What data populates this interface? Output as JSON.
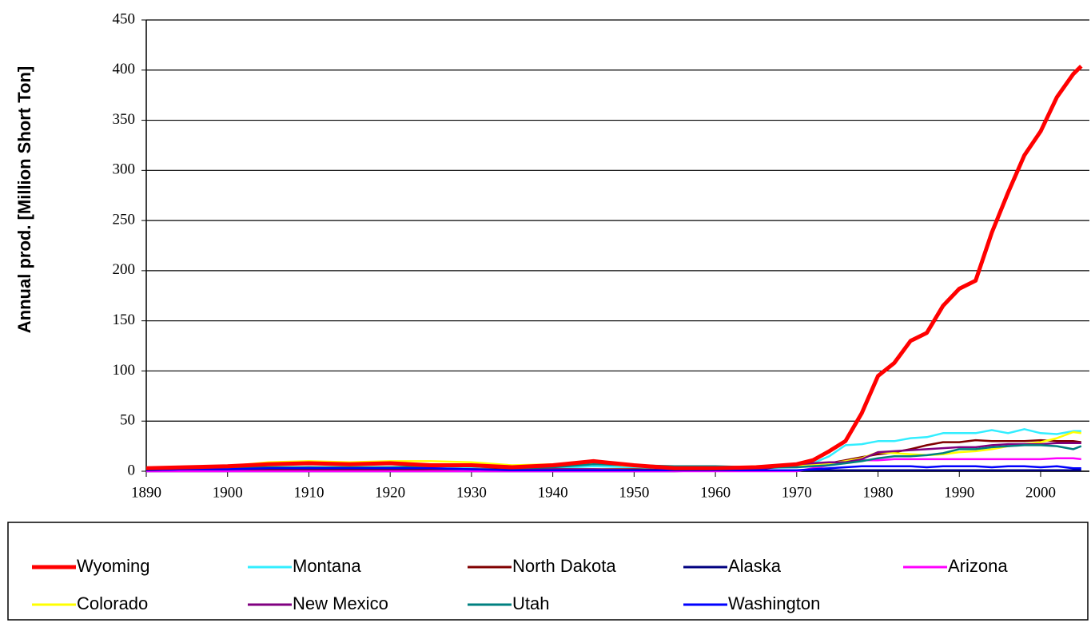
{
  "chart_data": {
    "type": "line",
    "ylabel": "Annual prod. [Million  Short Ton]",
    "x": [
      1890,
      1895,
      1900,
      1905,
      1910,
      1915,
      1920,
      1925,
      1930,
      1935,
      1940,
      1945,
      1950,
      1955,
      1960,
      1965,
      1970,
      1972,
      1974,
      1976,
      1978,
      1980,
      1982,
      1984,
      1986,
      1988,
      1990,
      1992,
      1994,
      1996,
      1998,
      2000,
      2002,
      2004,
      2005
    ],
    "series": [
      {
        "name": "Wyoming",
        "color": "#ff0000",
        "values": [
          3,
          4,
          5,
          7,
          8,
          7,
          8,
          6,
          6,
          4,
          6,
          10,
          6,
          3,
          3,
          4,
          7,
          11,
          20,
          30,
          58,
          95,
          108,
          130,
          138,
          165,
          182,
          190,
          238,
          278,
          315,
          339,
          373,
          396,
          404
        ]
      },
      {
        "name": "Montana",
        "color": "#33eeff",
        "values": [
          2,
          2,
          2,
          3,
          3,
          3,
          3,
          3,
          3,
          2,
          3,
          5,
          4,
          2,
          2,
          3,
          4,
          8,
          15,
          26,
          27,
          30,
          30,
          33,
          34,
          38,
          38,
          38,
          41,
          38,
          42,
          38,
          37,
          40,
          40
        ]
      },
      {
        "name": "North Dakota",
        "color": "#800000",
        "values": [
          1,
          1,
          1,
          1,
          1,
          1,
          1,
          2,
          2,
          2,
          2,
          2,
          2,
          1,
          2,
          2,
          6,
          7,
          8,
          11,
          14,
          17,
          19,
          22,
          26,
          29,
          29,
          31,
          30,
          30,
          30,
          31,
          30,
          30,
          29
        ]
      },
      {
        "name": "Alaska",
        "color": "#000080",
        "values": [
          0,
          0,
          0,
          0,
          0,
          0,
          0,
          0,
          0,
          0,
          0,
          0,
          0,
          0,
          1,
          1,
          1,
          1,
          1,
          1,
          1,
          1,
          1,
          1,
          1,
          1,
          1,
          1,
          1,
          1,
          1,
          1,
          1,
          1,
          1
        ]
      },
      {
        "name": "Arizona",
        "color": "#ff00ff",
        "values": [
          0,
          0,
          0,
          0,
          0,
          0,
          0,
          0,
          0,
          0,
          0,
          0,
          0,
          0,
          0,
          0,
          0,
          3,
          6,
          10,
          11,
          11,
          12,
          12,
          12,
          12,
          12,
          12,
          12,
          12,
          12,
          12,
          13,
          13,
          12
        ]
      },
      {
        "name": "Colorado",
        "color": "#ffff00",
        "values": [
          3,
          4,
          5,
          9,
          10,
          9,
          10,
          10,
          9,
          6,
          7,
          8,
          5,
          3,
          3,
          5,
          6,
          7,
          8,
          10,
          13,
          19,
          18,
          17,
          16,
          17,
          19,
          20,
          22,
          25,
          27,
          29,
          33,
          39,
          38
        ]
      },
      {
        "name": "New Mexico",
        "color": "#800080",
        "values": [
          1,
          2,
          2,
          3,
          4,
          3,
          3,
          3,
          2,
          1,
          2,
          2,
          1,
          1,
          1,
          2,
          7,
          8,
          9,
          9,
          12,
          19,
          20,
          21,
          22,
          23,
          24,
          24,
          26,
          27,
          27,
          27,
          28,
          28,
          28
        ]
      },
      {
        "name": "Utah",
        "color": "#008080",
        "values": [
          2,
          3,
          4,
          4,
          4,
          4,
          4,
          5,
          5,
          3,
          4,
          7,
          6,
          5,
          5,
          4,
          4,
          5,
          6,
          8,
          10,
          13,
          15,
          15,
          16,
          18,
          22,
          22,
          24,
          25,
          26,
          26,
          25,
          22,
          25
        ]
      },
      {
        "name": "Washington",
        "color": "#0000ff",
        "values": [
          1,
          2,
          2,
          3,
          3,
          3,
          3,
          3,
          2,
          1,
          1,
          1,
          1,
          1,
          1,
          1,
          1,
          2,
          3,
          4,
          5,
          5,
          5,
          5,
          4,
          5,
          5,
          5,
          4,
          5,
          5,
          4,
          5,
          3,
          3
        ]
      }
    ],
    "xlim": [
      1890,
      2006
    ],
    "xticks": [
      1890,
      1900,
      1910,
      1920,
      1930,
      1940,
      1950,
      1960,
      1970,
      1980,
      1990,
      2000
    ],
    "ylim": [
      0,
      450
    ],
    "yticks": [
      0,
      50,
      100,
      150,
      200,
      250,
      300,
      350,
      400,
      450
    ],
    "grid": true
  }
}
